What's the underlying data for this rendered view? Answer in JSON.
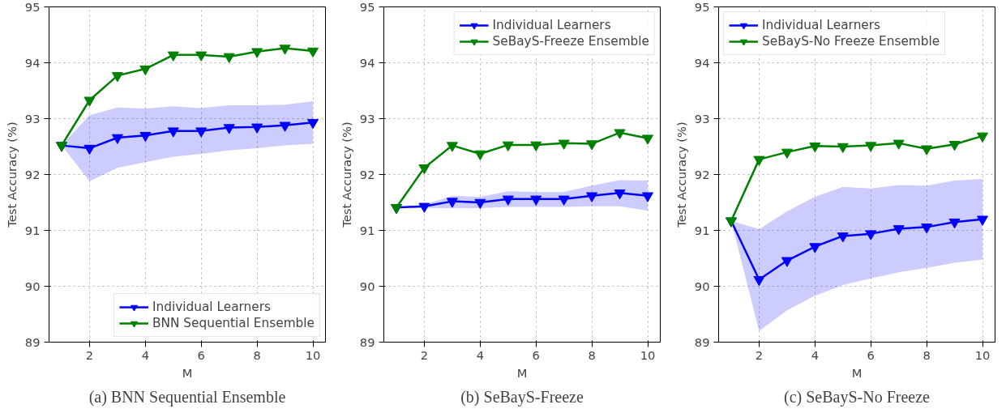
{
  "chart_data": [
    {
      "type": "line",
      "xlabel": "M",
      "ylabel": "Test Accuracy (%)",
      "x": [
        1,
        2,
        3,
        4,
        5,
        6,
        7,
        8,
        9,
        10
      ],
      "xlim": [
        0.55,
        10.45
      ],
      "xticks": [
        2,
        4,
        6,
        8,
        10
      ],
      "ylim": [
        89,
        95
      ],
      "yticks": [
        89,
        90,
        91,
        92,
        93,
        94,
        95
      ],
      "grid": true,
      "legend": "bottom right",
      "marker": "triangle",
      "line_style": "solid",
      "annotations": [
        "(a) BNN Sequential Ensemble"
      ],
      "series": [
        {
          "name": "Individual Learners",
          "color": "#0000ff",
          "values": [
            92.52,
            92.47,
            92.66,
            92.7,
            92.78,
            92.78,
            92.84,
            92.85,
            92.88,
            92.93
          ],
          "lower": [
            92.52,
            91.88,
            92.12,
            92.22,
            92.32,
            92.37,
            92.43,
            92.47,
            92.52,
            92.55
          ],
          "upper": [
            92.52,
            93.06,
            93.2,
            93.18,
            93.22,
            93.19,
            93.24,
            93.24,
            93.25,
            93.31
          ]
        },
        {
          "name": "BNN Sequential Ensemble",
          "color": "#008000",
          "values": [
            92.52,
            93.33,
            93.77,
            93.89,
            94.14,
            94.14,
            94.11,
            94.2,
            94.26,
            94.21
          ]
        }
      ]
    },
    {
      "type": "line",
      "xlabel": "M",
      "ylabel": "Test Accuracy (%)",
      "x": [
        1,
        2,
        3,
        4,
        5,
        6,
        7,
        8,
        9,
        10
      ],
      "xlim": [
        0.55,
        10.45
      ],
      "xticks": [
        2,
        4,
        6,
        8,
        10
      ],
      "ylim": [
        89,
        95
      ],
      "yticks": [
        89,
        90,
        91,
        92,
        93,
        94,
        95
      ],
      "grid": true,
      "legend": "top right",
      "marker": "triangle",
      "line_style": "solid",
      "annotations": [
        "(b) SeBayS-Freeze"
      ],
      "series": [
        {
          "name": "Individual Learners",
          "color": "#0000ff",
          "values": [
            91.41,
            91.43,
            91.52,
            91.5,
            91.56,
            91.56,
            91.56,
            91.62,
            91.67,
            91.62
          ],
          "lower": [
            91.41,
            91.4,
            91.4,
            91.4,
            91.42,
            91.42,
            91.42,
            91.43,
            91.43,
            91.35
          ],
          "upper": [
            91.41,
            91.46,
            91.62,
            91.6,
            91.7,
            91.69,
            91.69,
            91.8,
            91.9,
            91.89
          ]
        },
        {
          "name": "SeBayS-Freeze Ensemble",
          "color": "#008000",
          "values": [
            91.41,
            92.12,
            92.52,
            92.37,
            92.53,
            92.53,
            92.56,
            92.55,
            92.75,
            92.65
          ]
        }
      ]
    },
    {
      "type": "line",
      "xlabel": "M",
      "ylabel": "Test Accuracy (%)",
      "x": [
        1,
        2,
        3,
        4,
        5,
        6,
        7,
        8,
        9,
        10
      ],
      "xlim": [
        0.55,
        10.45
      ],
      "xticks": [
        2,
        4,
        6,
        8,
        10
      ],
      "ylim": [
        89,
        95
      ],
      "yticks": [
        89,
        90,
        91,
        92,
        93,
        94,
        95
      ],
      "grid": true,
      "legend": "top left",
      "marker": "triangle",
      "line_style": "solid",
      "annotations": [
        "(c) SeBayS-No Freeze"
      ],
      "series": [
        {
          "name": "Individual Learners",
          "color": "#0000ff",
          "values": [
            91.17,
            90.12,
            90.46,
            90.71,
            90.9,
            90.94,
            91.03,
            91.06,
            91.15,
            91.2
          ],
          "lower": [
            91.17,
            89.2,
            89.57,
            89.83,
            90.02,
            90.14,
            90.25,
            90.33,
            90.42,
            90.48
          ],
          "upper": [
            91.17,
            91.02,
            91.34,
            91.6,
            91.78,
            91.75,
            91.81,
            91.8,
            91.89,
            91.92
          ]
        },
        {
          "name": "SeBayS-No Freeze Ensemble",
          "color": "#008000",
          "values": [
            91.17,
            92.27,
            92.4,
            92.51,
            92.5,
            92.52,
            92.56,
            92.46,
            92.54,
            92.69
          ]
        }
      ]
    }
  ]
}
